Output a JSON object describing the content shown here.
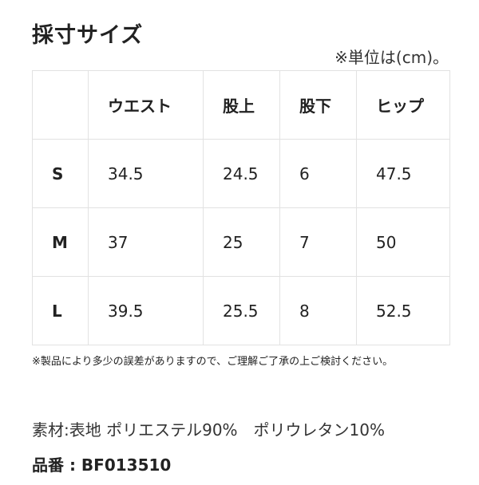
{
  "title": "採寸サイズ",
  "unit_note": "※単位は(cm)。",
  "table": {
    "headers": [
      "",
      "ウエスト",
      "股上",
      "股下",
      "ヒップ"
    ],
    "rows": [
      [
        "S",
        "34.5",
        "24.5",
        "6",
        "47.5"
      ],
      [
        "M",
        "37",
        "25",
        "7",
        "50"
      ],
      [
        "L",
        "39.5",
        "25.5",
        "8",
        "52.5"
      ]
    ]
  },
  "disclaimer": "※製品により多少の誤差がありますので、ご理解ご了承の上ご検討ください。",
  "material": "素材:表地 ポリエステル90%　ポリウレタン10%",
  "product_code": "品番 : BF013510"
}
